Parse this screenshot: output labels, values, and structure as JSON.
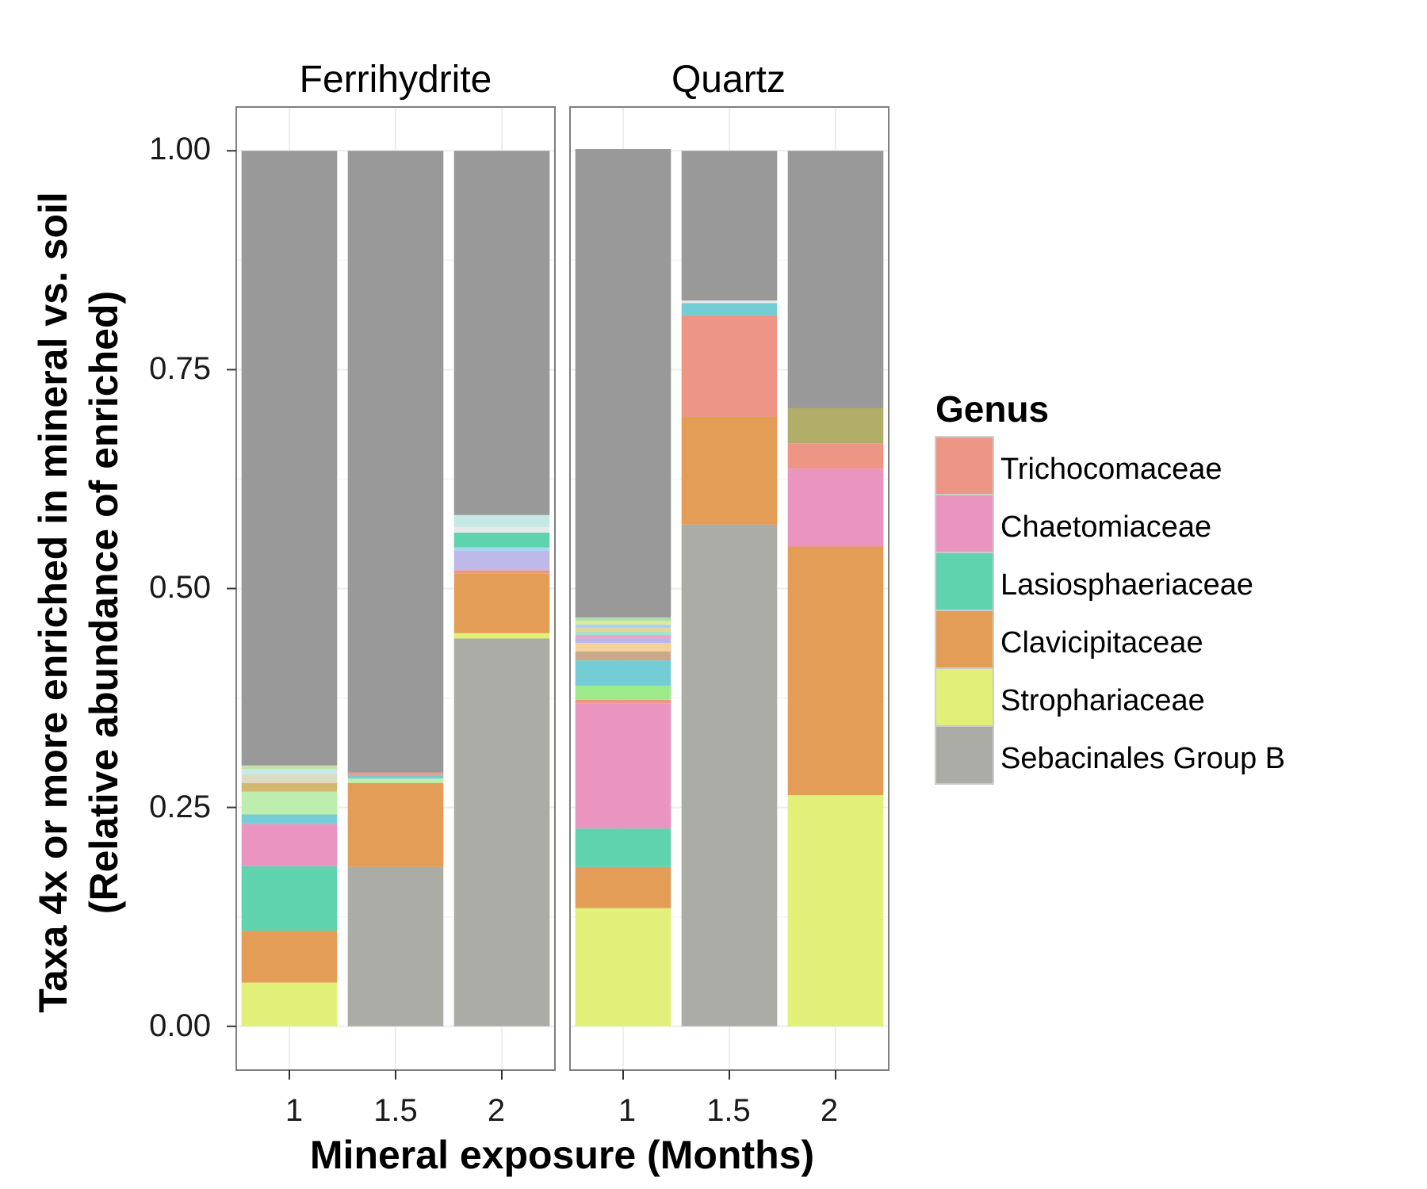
{
  "chart_data": {
    "type": "bar",
    "stacked": true,
    "facets": [
      "Ferrihydrite",
      "Quartz"
    ],
    "categories": [
      "1",
      "1.5",
      "2"
    ],
    "xlabel": "Mineral exposure (Months)",
    "ylabel_line1": "Taxa 4x or more enriched in mineral vs. soil",
    "ylabel_line2": "(Relative abundance of enriched)",
    "yticks": [
      "0.00",
      "0.25",
      "0.50",
      "0.75",
      "1.00"
    ],
    "ylim": [
      -0.05,
      1.05
    ],
    "grid": true,
    "legend_position": "right",
    "legend": {
      "title": "Genus",
      "entries": [
        {
          "name": "Trichocomaceae",
          "color": "#EE9685"
        },
        {
          "name": "Chaetomiaceae",
          "color": "#E995BF"
        },
        {
          "name": "Lasiosphaeriaceae",
          "color": "#5FD3AD"
        },
        {
          "name": "Clavicipitaceae",
          "color": "#E39D57"
        },
        {
          "name": "Strophariaceae",
          "color": "#E0F078"
        },
        {
          "name": "Sebacinales Group B",
          "color": "#ACACA7"
        }
      ]
    },
    "bars": [
      {
        "facet": "Ferrihydrite",
        "x": "1",
        "segments": [
          {
            "value": 0.05,
            "color": "#E0F078"
          },
          {
            "value": 0.059,
            "color": "#E39D57"
          },
          {
            "value": 0.074,
            "color": "#5FD3AD"
          },
          {
            "value": 0.048,
            "color": "#E995BF"
          },
          {
            "value": 0.011,
            "color": "#74CCD4"
          },
          {
            "value": 0.026,
            "color": "#BEEEAE"
          },
          {
            "value": 0.01,
            "color": "#D4B86F"
          },
          {
            "value": 0.01,
            "color": "#DCDCC4"
          },
          {
            "value": 0.006,
            "color": "#C6E9E6"
          },
          {
            "value": 0.004,
            "color": "#C5E2A6"
          },
          {
            "value": 0.702,
            "color": "#999999"
          }
        ]
      },
      {
        "facet": "Ferrihydrite",
        "x": "1.5",
        "segments": [
          {
            "value": 0.182,
            "color": "#ACACA7"
          },
          {
            "value": 0.096,
            "color": "#E39D57"
          },
          {
            "value": 0.005,
            "color": "#BEEEAE"
          },
          {
            "value": 0.004,
            "color": "#74CCD4"
          },
          {
            "value": 0.003,
            "color": "#EE9685"
          },
          {
            "value": 0.71,
            "color": "#999999"
          }
        ]
      },
      {
        "facet": "Ferrihydrite",
        "x": "2",
        "segments": [
          {
            "value": 0.443,
            "color": "#ACACA7"
          },
          {
            "value": 0.006,
            "color": "#E0F078"
          },
          {
            "value": 0.068,
            "color": "#E39D57"
          },
          {
            "value": 0.004,
            "color": "#EE9685"
          },
          {
            "value": 0.022,
            "color": "#BEB9E8"
          },
          {
            "value": 0.004,
            "color": "#A8D6F0"
          },
          {
            "value": 0.017,
            "color": "#5FD3AD"
          },
          {
            "value": 0.006,
            "color": "#E8E8E8"
          },
          {
            "value": 0.014,
            "color": "#C6E9E6"
          },
          {
            "value": 0.416,
            "color": "#999999"
          }
        ]
      },
      {
        "facet": "Quartz",
        "x": "1",
        "segments": [
          {
            "value": 0.135,
            "color": "#E0F078"
          },
          {
            "value": 0.047,
            "color": "#E39D57"
          },
          {
            "value": 0.044,
            "color": "#5FD3AD"
          },
          {
            "value": 0.143,
            "color": "#E995BF"
          },
          {
            "value": 0.004,
            "color": "#EE9685"
          },
          {
            "value": 0.016,
            "color": "#9CEA89"
          },
          {
            "value": 0.029,
            "color": "#74CCD4"
          },
          {
            "value": 0.01,
            "color": "#C9A98A"
          },
          {
            "value": 0.01,
            "color": "#F2D19A"
          },
          {
            "value": 0.005,
            "color": "#B7B7EA"
          },
          {
            "value": 0.004,
            "color": "#EBA6C9"
          },
          {
            "value": 0.004,
            "color": "#A7E1CD"
          },
          {
            "value": 0.004,
            "color": "#E4D39B"
          },
          {
            "value": 0.004,
            "color": "#A9D2EC"
          },
          {
            "value": 0.004,
            "color": "#D8EC9D"
          },
          {
            "value": 0.004,
            "color": "#B2DDA8"
          },
          {
            "value": 0.535,
            "color": "#999999"
          }
        ]
      },
      {
        "facet": "Quartz",
        "x": "1.5",
        "segments": [
          {
            "value": 0.573,
            "color": "#ACACA7"
          },
          {
            "value": 0.123,
            "color": "#E39D57"
          },
          {
            "value": 0.116,
            "color": "#EE9685"
          },
          {
            "value": 0.014,
            "color": "#74CCD4"
          },
          {
            "value": 0.003,
            "color": "#E8E8E8"
          },
          {
            "value": 0.171,
            "color": "#999999"
          }
        ]
      },
      {
        "facet": "Quartz",
        "x": "2",
        "segments": [
          {
            "value": 0.264,
            "color": "#E0F078"
          },
          {
            "value": 0.284,
            "color": "#E39D57"
          },
          {
            "value": 0.089,
            "color": "#E995BF"
          },
          {
            "value": 0.029,
            "color": "#EE9685"
          },
          {
            "value": 0.04,
            "color": "#B1AE6A"
          },
          {
            "value": 0.294,
            "color": "#999999"
          }
        ]
      }
    ]
  }
}
